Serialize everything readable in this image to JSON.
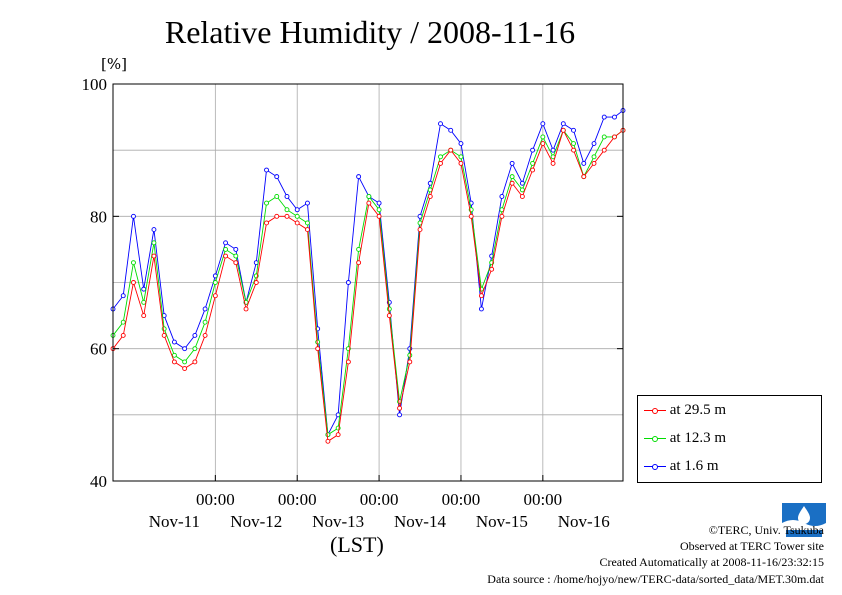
{
  "title": "Relative Humidity / 2008-11-16",
  "unit_label": "[%]",
  "x_axis_title": "(LST)",
  "credits": [
    "©TERC, Univ. Tsukuba",
    "Observed at TERC Tower site",
    "Created Automatically at 2008-11-16/23:32:15",
    "Data source : /home/hojyo/new/TERC-data/sorted_data/MET.30m.dat"
  ],
  "chart_data": {
    "type": "line",
    "title": "Relative Humidity / 2008-11-16",
    "ylabel": "[%]",
    "xlabel": "(LST)",
    "ylim": [
      40,
      100
    ],
    "y_ticks": [
      "40",
      "60",
      "80",
      "100"
    ],
    "x_range_days": [
      "Nov-11 00:00 (approx. start 2008-11-10 18:00)",
      "2008-11-16 24:00"
    ],
    "x_time_ticks": [
      "00:00",
      "00:00",
      "00:00",
      "00:00",
      "00:00"
    ],
    "x_day_labels": [
      "Nov-11",
      "Nov-12",
      "Nov-13",
      "Nov-14",
      "Nov-15",
      "Nov-16"
    ],
    "grid": true,
    "legend_position": "right, below plot area",
    "x": [
      "11-10 18:00",
      "11-10 21:00",
      "11-11 00:00",
      "11-11 03:00",
      "11-11 06:00",
      "11-11 09:00",
      "11-11 12:00",
      "11-11 15:00",
      "11-11 18:00",
      "11-11 21:00",
      "11-12 00:00",
      "11-12 03:00",
      "11-12 06:00",
      "11-12 09:00",
      "11-12 12:00",
      "11-12 15:00",
      "11-12 18:00",
      "11-12 21:00",
      "11-13 00:00",
      "11-13 03:00",
      "11-13 06:00",
      "11-13 09:00",
      "11-13 12:00",
      "11-13 15:00",
      "11-13 18:00",
      "11-13 21:00",
      "11-14 00:00",
      "11-14 03:00",
      "11-14 06:00",
      "11-14 09:00",
      "11-14 12:00",
      "11-14 15:00",
      "11-14 18:00",
      "11-14 21:00",
      "11-15 00:00",
      "11-15 03:00",
      "11-15 06:00",
      "11-15 09:00",
      "11-15 12:00",
      "11-15 15:00",
      "11-15 18:00",
      "11-15 21:00",
      "11-16 00:00",
      "11-16 03:00",
      "11-16 06:00",
      "11-16 09:00",
      "11-16 12:00",
      "11-16 15:00",
      "11-16 18:00",
      "11-16 21:00",
      "11-16 23:30"
    ],
    "series": [
      {
        "name": "at 29.5 m",
        "color": "#ff0000",
        "values": [
          60,
          62,
          70,
          65,
          74,
          62,
          58,
          57,
          58,
          62,
          68,
          74,
          73,
          66,
          70,
          79,
          80,
          80,
          79,
          78,
          60,
          46,
          47,
          58,
          73,
          82,
          80,
          65,
          51,
          58,
          78,
          83,
          88,
          90,
          88,
          80,
          68,
          72,
          80,
          85,
          83,
          87,
          91,
          88,
          93,
          90,
          86,
          88,
          90,
          92,
          93
        ]
      },
      {
        "name": "at 12.3 m",
        "color": "#00dd00",
        "values": [
          62,
          64,
          73,
          67,
          76,
          63,
          59,
          58,
          60,
          64,
          70,
          75,
          74,
          67,
          71,
          82,
          83,
          81,
          80,
          79,
          61,
          47,
          48,
          60,
          75,
          83,
          81,
          66,
          52,
          59,
          79,
          84,
          89,
          90,
          89,
          81,
          69,
          73,
          81,
          86,
          84,
          88,
          92,
          89,
          93,
          91,
          86,
          89,
          92,
          92,
          93
        ]
      },
      {
        "name": "at 1.6 m",
        "color": "#0000ff",
        "values": [
          66,
          68,
          80,
          69,
          78,
          65,
          61,
          60,
          62,
          66,
          71,
          76,
          75,
          67,
          73,
          87,
          86,
          83,
          81,
          82,
          63,
          47,
          50,
          70,
          86,
          83,
          82,
          67,
          50,
          60,
          80,
          85,
          94,
          93,
          91,
          82,
          66,
          74,
          83,
          88,
          85,
          90,
          94,
          90,
          94,
          93,
          88,
          91,
          95,
          95,
          96
        ]
      }
    ]
  }
}
